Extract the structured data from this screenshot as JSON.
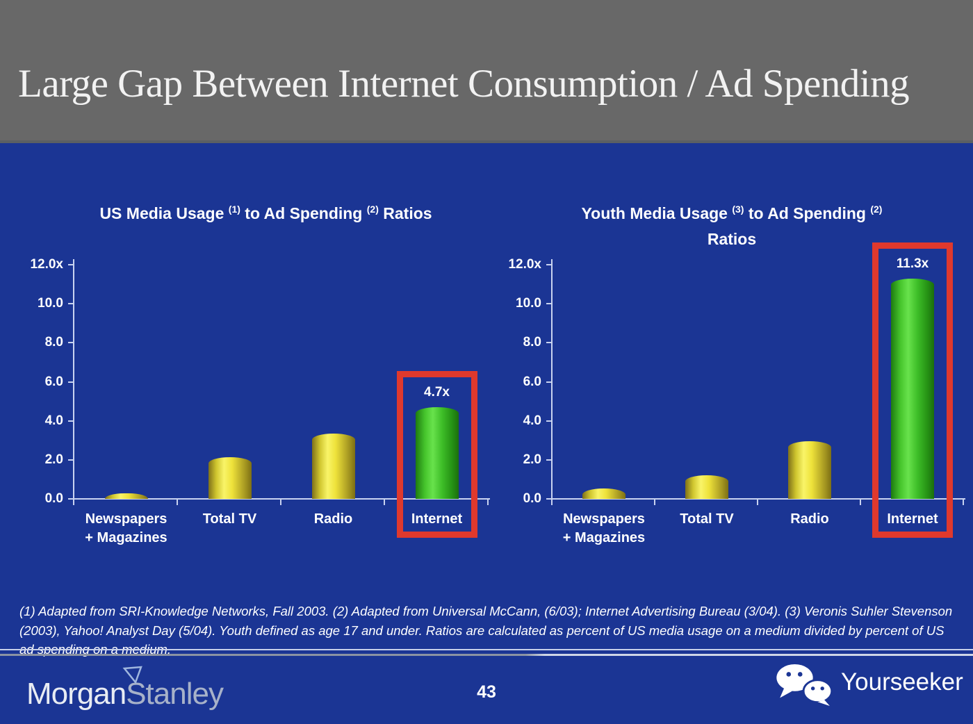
{
  "slide": {
    "title": "Large Gap Between Internet Consumption / Ad Spending",
    "footnote": "(1) Adapted from SRI-Knowledge Networks, Fall 2003.  (2) Adapted from Universal McCann, (6/03); Internet Advertising Bureau (3/04). (3) Veronis Suhler Stevenson (2003), Yahoo! Analyst Day (5/04).  Youth defined as age 17 and under.  Ratios are calculated as percent of US media usage on a medium divided by percent of US ad spending on a medium.",
    "page_number": "43",
    "brand": {
      "morgan": "Morgan",
      "stanley": "Stanley"
    },
    "watermark": {
      "icon": "wechat-icon",
      "label": "Yourseeker"
    }
  },
  "colors": {
    "background_blue": "#1b3594",
    "header_gray": "#686868",
    "bar_yellow": "#eee23a",
    "bar_green": "#46c52c",
    "highlight_red": "#df392d",
    "axis_line": "#c9d3f0",
    "text_white": "#ffffff"
  },
  "chart_data": [
    {
      "type": "bar",
      "title": "US Media Usage (1) to Ad Spending (2) Ratios",
      "title_parts": [
        {
          "text": "US Media Usage "
        },
        {
          "sup": "(1)"
        },
        {
          "text": " to Ad Spending "
        },
        {
          "sup": "(2)"
        },
        {
          "text": " Ratios"
        }
      ],
      "categories": [
        "Newspapers\n+ Magazines",
        "Total TV",
        "Radio",
        "Internet"
      ],
      "values": [
        0.3,
        2.15,
        3.35,
        4.7
      ],
      "value_labels": [
        "",
        "",
        "",
        "4.7x"
      ],
      "highlight_index": 3,
      "ylim": [
        0,
        12
      ],
      "yticks": [
        {
          "v": 12,
          "label": "12.0x"
        },
        {
          "v": 10,
          "label": "10.0"
        },
        {
          "v": 8,
          "label": "8.0"
        },
        {
          "v": 6,
          "label": "6.0"
        },
        {
          "v": 4,
          "label": "4.0"
        },
        {
          "v": 2,
          "label": "2.0"
        },
        {
          "v": 0,
          "label": "0.0"
        }
      ],
      "grid": false,
      "legend": "none"
    },
    {
      "type": "bar",
      "title": "Youth Media Usage (3) to Ad Spending (2) Ratios",
      "title_parts": [
        {
          "text": "Youth Media Usage "
        },
        {
          "sup": "(3)"
        },
        {
          "text": " to Ad Spending "
        },
        {
          "sup": "(2)"
        },
        {
          "break": true
        },
        {
          "text": "Ratios"
        }
      ],
      "categories": [
        "Newspapers\n+ Magazines",
        "Total TV",
        "Radio",
        "Internet"
      ],
      "values": [
        0.55,
        1.2,
        2.95,
        11.3
      ],
      "value_labels": [
        "",
        "",
        "",
        "11.3x"
      ],
      "highlight_index": 3,
      "ylim": [
        0,
        12
      ],
      "yticks": [
        {
          "v": 12,
          "label": "12.0x"
        },
        {
          "v": 10,
          "label": "10.0"
        },
        {
          "v": 8,
          "label": "8.0"
        },
        {
          "v": 6,
          "label": "6.0"
        },
        {
          "v": 4,
          "label": "4.0"
        },
        {
          "v": 2,
          "label": "2.0"
        },
        {
          "v": 0,
          "label": "0.0"
        }
      ],
      "grid": false,
      "legend": "none"
    }
  ]
}
